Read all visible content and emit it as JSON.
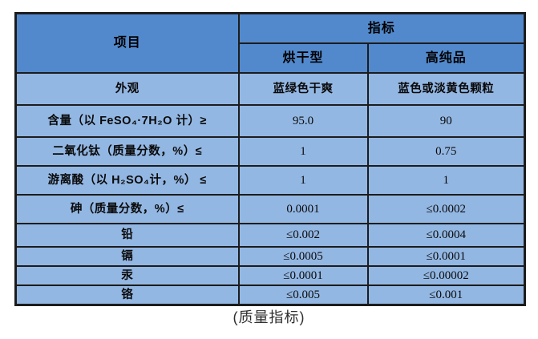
{
  "table": {
    "header": {
      "item": "项目",
      "indicator": "指标",
      "sub_cols": [
        "烘干型",
        "高纯品"
      ]
    },
    "rows": [
      {
        "label": "外观",
        "dry": "蓝绿色干爽",
        "pure": "蓝色或淡黄色颗粒"
      },
      {
        "label": "含量（以 FeSO₄·7H₂O 计）≥",
        "dry": "95.0",
        "pure": "90"
      },
      {
        "label": "二氧化钛（质量分数，%）≤",
        "dry": "1",
        "pure": "0.75"
      },
      {
        "label": "游离酸（以 H₂SO₄计，%） ≤",
        "dry": "1",
        "pure": "1"
      },
      {
        "label": "砷（质量分数，%）≤",
        "dry": "0.0001",
        "pure": "≤0.0002"
      },
      {
        "label": "铅",
        "dry": "≤0.002",
        "pure": "≤0.0004"
      },
      {
        "label": "镉",
        "dry": "≤0.0005",
        "pure": "≤0.0001"
      },
      {
        "label": "汞",
        "dry": "≤0.0001",
        "pure": "≤0.00002"
      },
      {
        "label": "铬",
        "dry": "≤0.005",
        "pure": "≤0.001"
      }
    ]
  },
  "caption": "(质量指标)",
  "colors": {
    "header_bg": "#5289CD",
    "row_bg": "#93B7E3",
    "border": "#1c1c1c",
    "caption_color": "#2e2e2e",
    "text": "#0a0a0a"
  }
}
